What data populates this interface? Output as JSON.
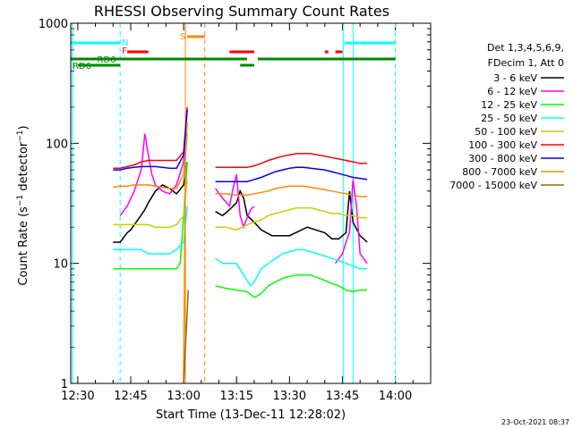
{
  "chart_data": {
    "type": "line",
    "title": "RHESSI Observing Summary Count Rates",
    "xlabel": "Start Time (13-Dec-11 12:28:02)",
    "ylabel": "Count Rate (s⁻¹ detector⁻¹)",
    "ylabel_base": "Count Rate (s",
    "ylabel_sup": "−1",
    "ylabel_mid": " detector",
    "ylabel_sup2": "−1",
    "ylabel_end": ")",
    "xlim_minutes": [
      -2,
      100
    ],
    "ylim": [
      1,
      1000
    ],
    "yscale": "log",
    "x_ticks": [
      {
        "label": "12:30",
        "min": 0
      },
      {
        "label": "12:45",
        "min": 15
      },
      {
        "label": "13:00",
        "min": 30
      },
      {
        "label": "13:15",
        "min": 45
      },
      {
        "label": "13:30",
        "min": 60
      },
      {
        "label": "13:45",
        "min": 75
      },
      {
        "label": "14:00",
        "min": 90
      }
    ],
    "y_ticks": [
      {
        "label": "1",
        "v": 1
      },
      {
        "label": "10",
        "v": 10
      },
      {
        "label": "100",
        "v": 100
      },
      {
        "label": "1000",
        "v": 1000
      }
    ],
    "legend": {
      "placement": "right",
      "header": [
        "Det 1,3,4,5,6,9,",
        "FDecim 1, Att 0"
      ],
      "entries": [
        {
          "label": "3 - 6 keV",
          "color": "#000000"
        },
        {
          "label": "6 - 12 keV",
          "color": "#ff00ff"
        },
        {
          "label": "12 - 25 keV",
          "color": "#00ff00"
        },
        {
          "label": "25 - 50 keV",
          "color": "#00ffff"
        },
        {
          "label": "50 - 100 keV",
          "color": "#cccc00"
        },
        {
          "label": "100 - 300 keV",
          "color": "#ff0000"
        },
        {
          "label": "300 - 800 keV",
          "color": "#0000ff"
        },
        {
          "label": "800 - 7000 keV",
          "color": "#ff8800"
        },
        {
          "label": "7000 - 15000 keV",
          "color": "#996600"
        }
      ]
    },
    "flags": {
      "N_label": "N",
      "F_label": "F",
      "S_label": "S",
      "RD0_label": "RD0",
      "RD6_label": "RD6",
      "night_color": "#00ffff",
      "flare_color": "#ff0000",
      "saa_color": "#ff8800",
      "decim_color": "#008800"
    },
    "series": [
      {
        "name": "3 - 6 keV",
        "color": "#000000",
        "segments": [
          {
            "x": [
              10,
              12,
              14,
              15,
              17,
              19,
              20,
              22,
              24,
              26,
              28,
              30,
              31
            ],
            "y": [
              15,
              15,
              18,
              19,
              23,
              28,
              32,
              40,
              45,
              42,
              38,
              45,
              70
            ]
          },
          {
            "x": [
              39,
              41,
              43,
              45,
              46,
              47,
              48,
              50,
              52,
              55,
              60,
              65,
              70,
              72,
              74,
              76,
              77,
              78,
              80,
              82
            ],
            "y": [
              27,
              25,
              28,
              32,
              40,
              35,
              25,
              22,
              19,
              17,
              17,
              20,
              18,
              16,
              16,
              18,
              40,
              22,
              17,
              15
            ]
          }
        ]
      },
      {
        "name": "6 - 12 keV",
        "color": "#ff00ff",
        "segments": [
          {
            "x": [
              12,
              14,
              16,
              18,
              19,
              20,
              21,
              22,
              24,
              26,
              28,
              30,
              31
            ],
            "y": [
              25,
              30,
              40,
              60,
              120,
              80,
              55,
              45,
              40,
              38,
              45,
              70,
              190
            ]
          },
          {
            "x": [
              39,
              41,
              43,
              44,
              45,
              46,
              47,
              48,
              49,
              50
            ],
            "y": [
              42,
              35,
              30,
              42,
              55,
              25,
              20,
              24,
              28,
              30
            ]
          },
          {
            "x": [
              73,
              75,
              76,
              77,
              78,
              79,
              80,
              82
            ],
            "y": [
              10,
              12,
              15,
              18,
              50,
              30,
              12,
              10
            ]
          }
        ]
      },
      {
        "name": "12 - 25 keV",
        "color": "#00ff00",
        "segments": [
          {
            "x": [
              10,
              12,
              14,
              16,
              18,
              20,
              22,
              24,
              26,
              28,
              29,
              30,
              31
            ],
            "y": [
              9,
              9,
              9,
              9,
              9,
              9,
              9,
              9,
              9,
              9,
              10,
              25,
              70
            ]
          },
          {
            "x": [
              39,
              42,
              45,
              48,
              50,
              52,
              54,
              56,
              58,
              60,
              62,
              64,
              66,
              68,
              70,
              72,
              74,
              76,
              78,
              80,
              82
            ],
            "y": [
              6.5,
              6.2,
              6,
              5.8,
              5.2,
              5.6,
              6.5,
              7,
              7.5,
              7.8,
              8,
              8,
              8,
              7.6,
              7.2,
              6.8,
              6.5,
              6,
              5.8,
              6,
              6
            ]
          }
        ]
      },
      {
        "name": "25 - 50 keV",
        "color": "#00ffff",
        "segments": [
          {
            "x": [
              10,
              12,
              14,
              16,
              18,
              20,
              22,
              24,
              26,
              28,
              30,
              31
            ],
            "y": [
              13,
              13,
              13,
              13,
              13,
              12,
              12,
              12,
              12,
              13,
              15,
              30
            ]
          },
          {
            "x": [
              39,
              41,
              43,
              45,
              47,
              49,
              50,
              52,
              54,
              56,
              58,
              60,
              62,
              64,
              66,
              68,
              70,
              72,
              74,
              76,
              78,
              80,
              82
            ],
            "y": [
              11,
              10,
              10,
              10,
              8,
              6.5,
              7,
              9,
              10,
              11,
              12,
              12.5,
              13,
              13,
              12.5,
              12,
              11.5,
              11,
              10.5,
              10,
              9.5,
              9,
              9
            ]
          }
        ]
      },
      {
        "name": "50 - 100 keV",
        "color": "#cccc00",
        "segments": [
          {
            "x": [
              10,
              12,
              14,
              16,
              18,
              20,
              22,
              24,
              26,
              28,
              30,
              31
            ],
            "y": [
              21,
              21,
              21,
              21,
              21,
              21,
              20,
              20,
              20,
              21,
              25,
              50
            ]
          },
          {
            "x": [
              39,
              42,
              45,
              48,
              50,
              52,
              54,
              56,
              58,
              60,
              62,
              64,
              66,
              68,
              70,
              72,
              74,
              76,
              78,
              80,
              82
            ],
            "y": [
              20,
              20,
              19,
              21,
              22,
              23,
              25,
              26,
              27,
              28,
              29,
              29,
              29,
              28,
              27,
              26,
              26,
              25,
              25,
              24,
              24
            ]
          }
        ]
      },
      {
        "name": "100 - 300 keV",
        "color": "#ff0000",
        "segments": [
          {
            "x": [
              10,
              12,
              14,
              16,
              18,
              20,
              22,
              24,
              26,
              28,
              30,
              31
            ],
            "y": [
              62,
              62,
              64,
              66,
              70,
              72,
              72,
              72,
              72,
              72,
              85,
              200
            ]
          },
          {
            "x": [
              39,
              42,
              45,
              48,
              50,
              52,
              54,
              56,
              58,
              60,
              62,
              64,
              66,
              68,
              70,
              72,
              74,
              76,
              78,
              80,
              82
            ],
            "y": [
              63,
              63,
              63,
              63,
              65,
              68,
              72,
              75,
              78,
              80,
              82,
              82,
              82,
              80,
              78,
              76,
              74,
              72,
              70,
              68,
              68
            ]
          }
        ]
      },
      {
        "name": "300 - 800 keV",
        "color": "#0000ff",
        "segments": [
          {
            "x": [
              10,
              12,
              14,
              16,
              18,
              20,
              22,
              24,
              26,
              28,
              30,
              31
            ],
            "y": [
              60,
              60,
              62,
              63,
              64,
              64,
              64,
              63,
              62,
              62,
              80,
              190
            ]
          },
          {
            "x": [
              39,
              42,
              45,
              48,
              50,
              52,
              54,
              56,
              58,
              60,
              62,
              64,
              66,
              68,
              70,
              72,
              74,
              76,
              78,
              80,
              82
            ],
            "y": [
              48,
              48,
              48,
              48,
              50,
              52,
              55,
              58,
              60,
              62,
              63,
              63,
              62,
              61,
              60,
              58,
              56,
              54,
              52,
              51,
              50
            ]
          }
        ]
      },
      {
        "name": "800 - 7000 keV",
        "color": "#ff8800",
        "segments": [
          {
            "x": [
              10,
              12,
              14,
              16,
              18,
              20,
              22,
              24,
              26,
              28,
              30,
              31
            ],
            "y": [
              43,
              44,
              44,
              45,
              45,
              45,
              44,
              43,
              42,
              42,
              55,
              120
            ]
          },
          {
            "x": [
              39,
              42,
              45,
              48,
              50,
              52,
              54,
              56,
              58,
              60,
              62,
              64,
              66,
              68,
              70,
              72,
              74,
              76,
              78,
              80,
              82
            ],
            "y": [
              38,
              38,
              37,
              37,
              38,
              39,
              40,
              42,
              43,
              44,
              44,
              44,
              43,
              42,
              41,
              40,
              39,
              38,
              37,
              36,
              36
            ]
          },
          {
            "x": [
              30,
              30.5,
              31
            ],
            "y": [
              1,
              80,
              150
            ]
          }
        ]
      },
      {
        "name": "7000 - 15000 keV",
        "color": "#996600",
        "segments": [
          {
            "x": [
              30,
              30.5,
              31,
              31.3
            ],
            "y": [
              1,
              2,
              4,
              6
            ]
          }
        ]
      }
    ]
  },
  "footer": {
    "timestamp": "23-Oct-2021 08:37"
  }
}
